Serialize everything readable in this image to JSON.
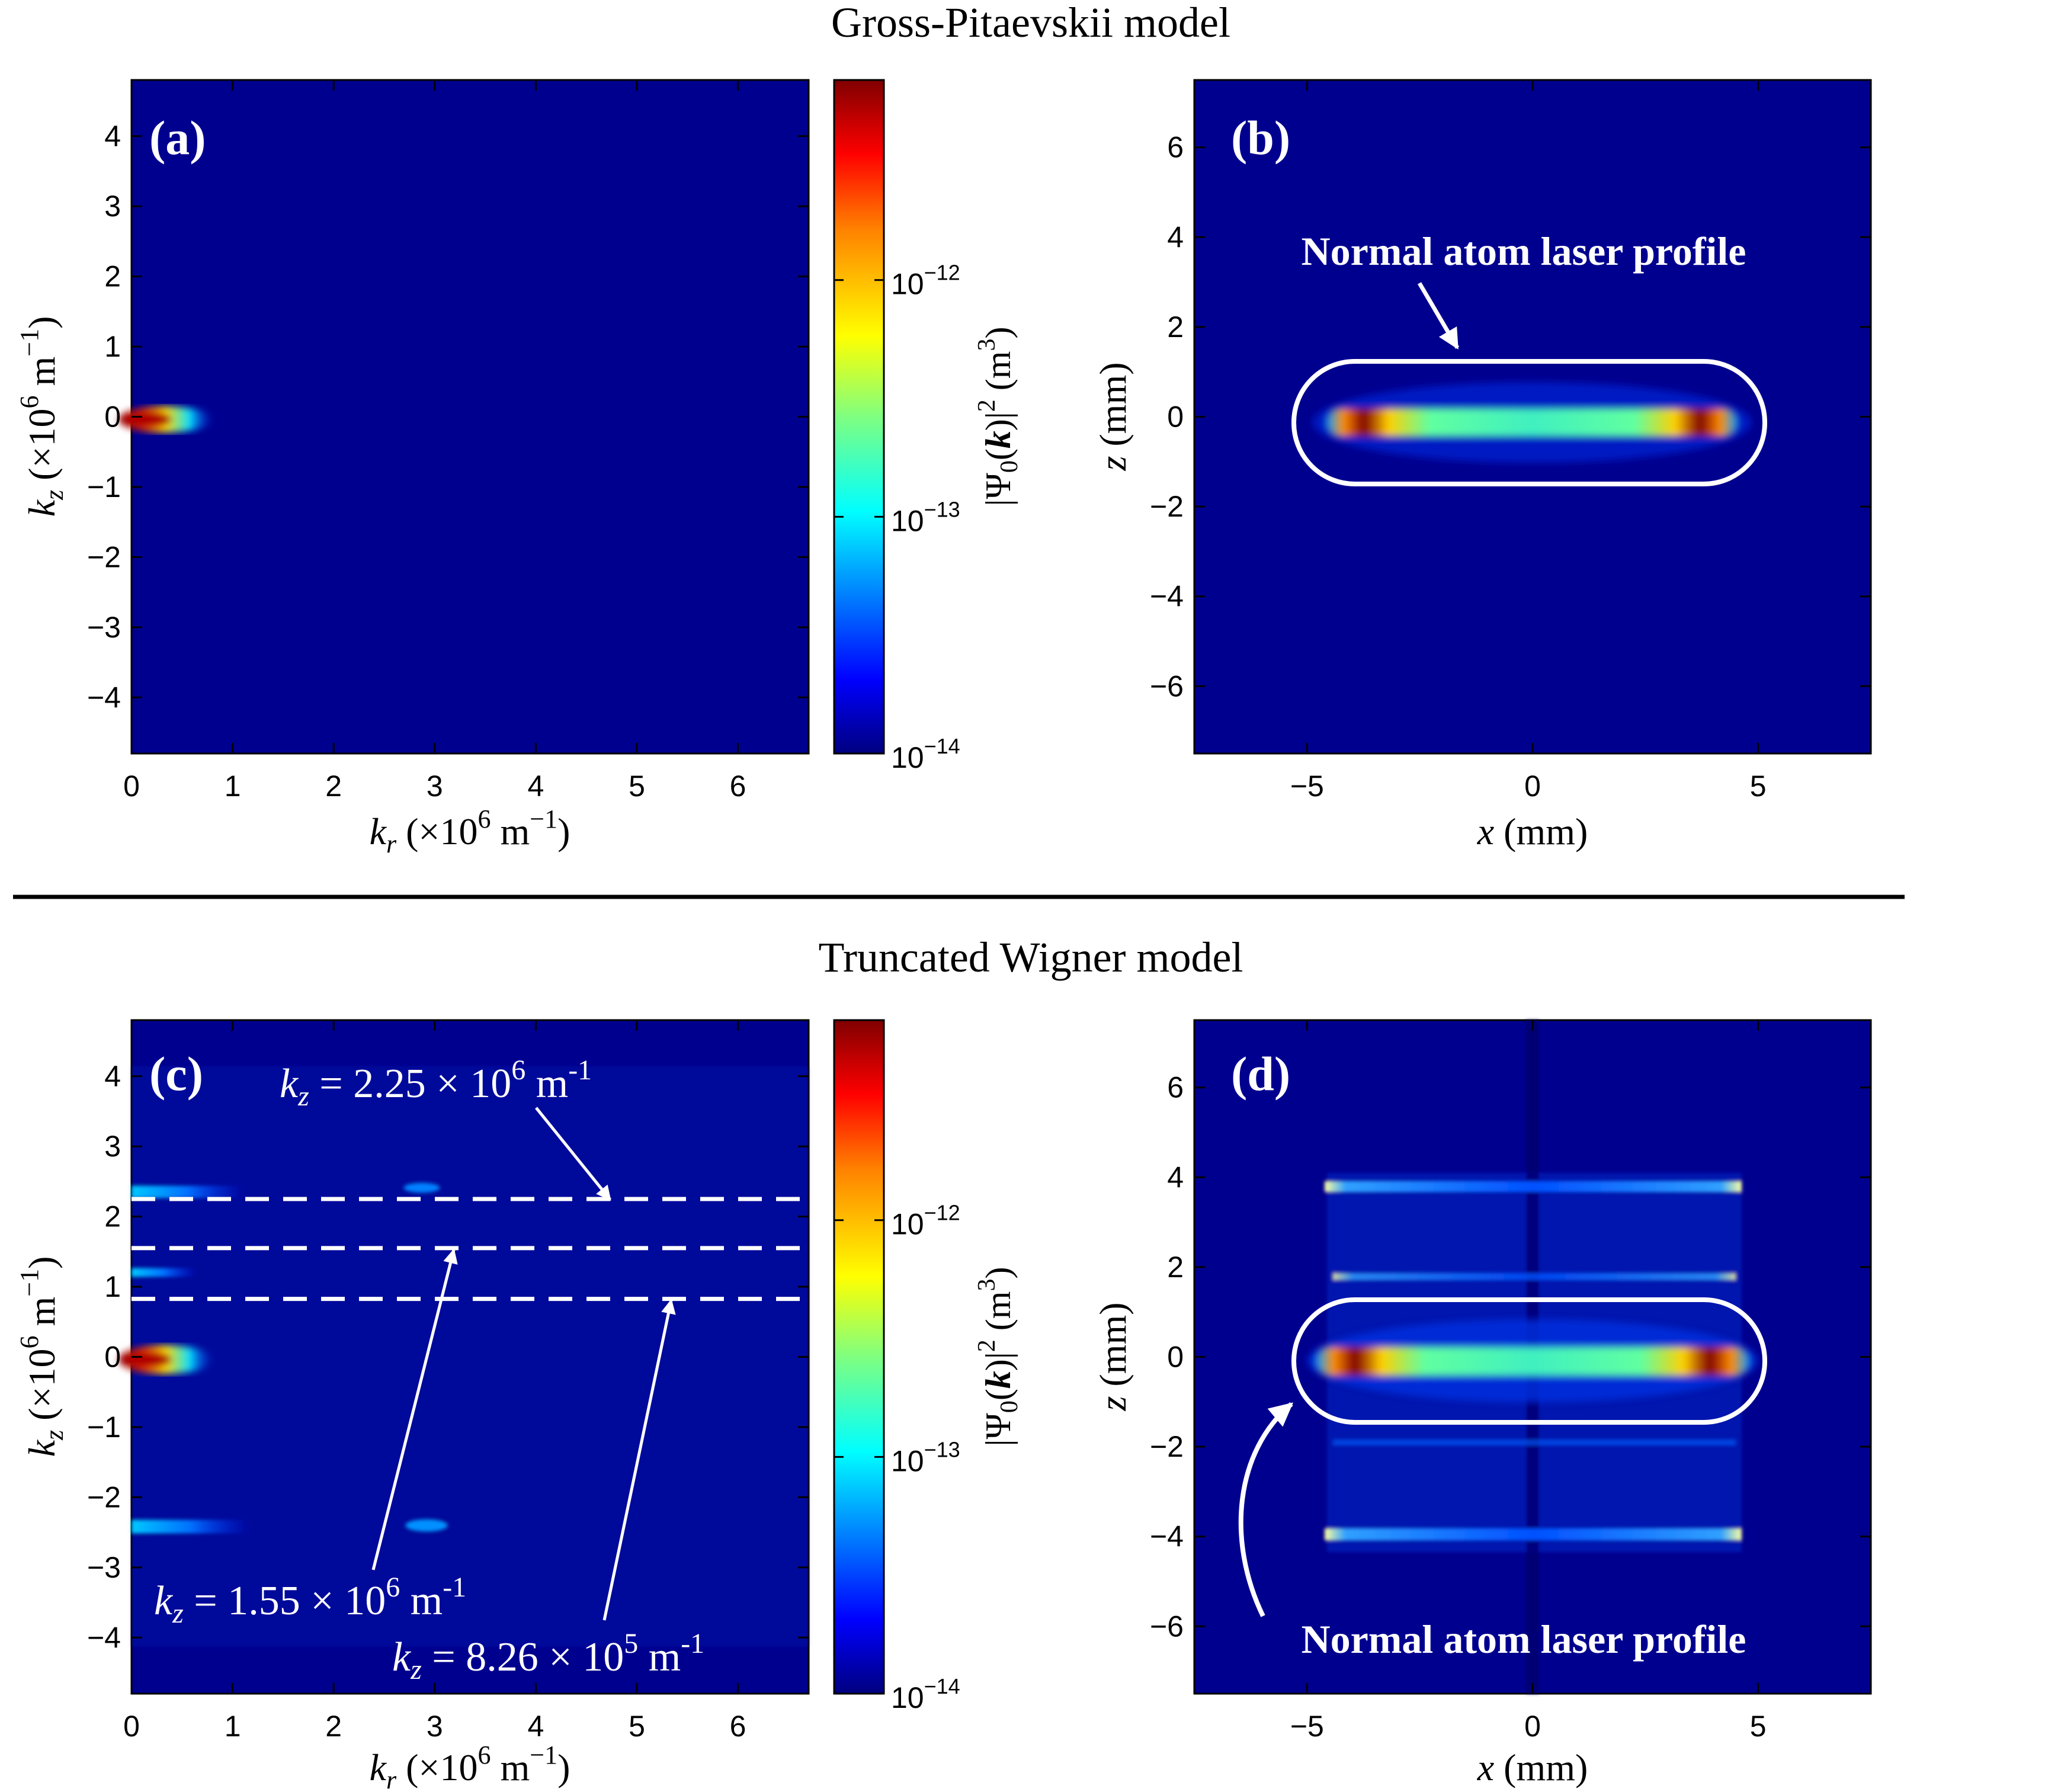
{
  "figure": {
    "titles": {
      "top": "Gross-Pitaevskii model",
      "bottom": "Truncated Wigner model"
    }
  },
  "colors": {
    "background_field": "#00008f",
    "annotation": "#ffffff",
    "axis": "#000000",
    "colormap": [
      "#000080",
      "#0000ff",
      "#0080ff",
      "#00ffff",
      "#80ff80",
      "#ffff00",
      "#ff8000",
      "#ff0000",
      "#800000"
    ]
  },
  "chart_data": [
    {
      "id": "a",
      "panel_label": "(a)",
      "type": "heatmap",
      "xlabel": {
        "var": "k",
        "sub": "r",
        "unit_pre": "(×10",
        "exp": "6",
        "unit_post": " m",
        "unit_exp": "−1",
        "close": ")"
      },
      "ylabel": {
        "var": "k",
        "sub": "z",
        "unit_pre": "(×10",
        "exp": "6",
        "unit_post": " m",
        "unit_exp": "−1",
        "close": ")"
      },
      "xlim": [
        0,
        6.7
      ],
      "ylim": [
        -4.8,
        4.8
      ],
      "xticks": [
        "0",
        "1",
        "2",
        "3",
        "4",
        "5",
        "6"
      ],
      "yticks": [
        "−4",
        "−3",
        "−2",
        "−1",
        "0",
        "1",
        "2",
        "3",
        "4"
      ],
      "features": [
        {
          "kind": "hotspot",
          "kr": [
            0,
            0.9
          ],
          "kz": 0,
          "peak": "dark-red"
        }
      ]
    },
    {
      "id": "b",
      "panel_label": "(b)",
      "type": "heatmap",
      "xlabel": {
        "var": "x",
        "unit": " (mm)"
      },
      "ylabel": {
        "var": "z",
        "unit": " (mm)"
      },
      "xlim": [
        -7.5,
        7.5
      ],
      "ylim": [
        -7.5,
        7.5
      ],
      "xticks": [
        "−5",
        "0",
        "5"
      ],
      "yticks": [
        "−6",
        "−4",
        "−2",
        "0",
        "2",
        "4",
        "6"
      ],
      "features": [
        {
          "kind": "bar",
          "x": [
            -4.5,
            4.5
          ],
          "z": 0,
          "hotspots_x": [
            -3.6,
            3.6
          ]
        }
      ],
      "annotation": {
        "text": "Normal atom laser profile",
        "highlight_box": {
          "x": [
            -5.2,
            5.2
          ],
          "z": [
            -1.4,
            1.4
          ]
        }
      }
    },
    {
      "id": "c",
      "panel_label": "(c)",
      "type": "heatmap",
      "xlabel": {
        "var": "k",
        "sub": "r",
        "unit_pre": "(×10",
        "exp": "6",
        "unit_post": " m",
        "unit_exp": "−1",
        "close": ")"
      },
      "ylabel": {
        "var": "k",
        "sub": "z",
        "unit_pre": "(×10",
        "exp": "6",
        "unit_post": " m",
        "unit_exp": "−1",
        "close": ")"
      },
      "xlim": [
        0,
        6.7
      ],
      "ylim": [
        -4.8,
        4.8
      ],
      "xticks": [
        "0",
        "1",
        "2",
        "3",
        "4",
        "5",
        "6"
      ],
      "yticks": [
        "−4",
        "−3",
        "−2",
        "−1",
        "0",
        "1",
        "2",
        "3",
        "4"
      ],
      "dashed_lines_kz": [
        2.25,
        1.55,
        0.826
      ],
      "annotations": [
        {
          "mantissa": "2.25",
          "exp": "6",
          "kz": 2.25
        },
        {
          "mantissa": "1.55",
          "exp": "6",
          "kz": 1.55
        },
        {
          "mantissa": "8.26",
          "exp": "5",
          "kz": 0.826
        }
      ],
      "features": [
        {
          "kind": "hotspot",
          "kr": [
            0,
            0.9
          ],
          "kz": 0,
          "peak": "dark-red"
        },
        {
          "kind": "streak",
          "kr": [
            0,
            1.0
          ],
          "kz": 2.4
        },
        {
          "kind": "streak",
          "kr": [
            0,
            1.0
          ],
          "kz": -2.45
        },
        {
          "kind": "streak",
          "kr": [
            0,
            0.6
          ],
          "kz": 1.25
        }
      ]
    },
    {
      "id": "d",
      "panel_label": "(d)",
      "type": "heatmap",
      "xlabel": {
        "var": "x",
        "unit": " (mm)"
      },
      "ylabel": {
        "var": "z",
        "unit": " (mm)"
      },
      "xlim": [
        -7.5,
        7.5
      ],
      "ylim": [
        -7.5,
        7.5
      ],
      "xticks": [
        "−5",
        "0",
        "5"
      ],
      "yticks": [
        "−6",
        "−4",
        "−2",
        "0",
        "2",
        "4",
        "6"
      ],
      "features": [
        {
          "kind": "bar",
          "x": [
            -4.6,
            4.6
          ],
          "z": 0,
          "hotspots_x": [
            -4.3,
            4.3
          ]
        },
        {
          "kind": "faint-bar",
          "x": [
            -4.5,
            4.5
          ],
          "z": 3.85
        },
        {
          "kind": "faint-bar",
          "x": [
            -4.5,
            4.5
          ],
          "z": -3.95
        },
        {
          "kind": "faint-bar",
          "x": [
            -4.4,
            4.4
          ],
          "z": 1.8
        }
      ],
      "annotation": {
        "text": "Normal atom laser profile",
        "highlight_box": {
          "x": [
            -5.2,
            5.2
          ],
          "z": [
            -1.4,
            1.4
          ]
        }
      }
    }
  ],
  "colorbars": [
    {
      "id": "cb1",
      "scale": "log",
      "range": [
        1e-14,
        7e-12
      ],
      "ticks": [
        {
          "value": 1e-14,
          "base": "10",
          "exp": "−14"
        },
        {
          "value": 1e-13,
          "base": "10",
          "exp": "−13"
        },
        {
          "value": 1e-12,
          "base": "10",
          "exp": "−12"
        }
      ],
      "label": {
        "pre": "|Ψ",
        "sub": "0",
        "open": "(",
        "k": "k",
        "close": ")|",
        "sq": "2",
        "unit": " (m",
        "unit_exp": "3",
        "end": ")"
      }
    },
    {
      "id": "cb2",
      "scale": "log",
      "range": [
        1e-14,
        7e-12
      ],
      "ticks": [
        {
          "value": 1e-14,
          "base": "10",
          "exp": "−14"
        },
        {
          "value": 1e-13,
          "base": "10",
          "exp": "−13"
        },
        {
          "value": 1e-12,
          "base": "10",
          "exp": "−12"
        }
      ],
      "label": {
        "pre": "|Ψ",
        "sub": "0",
        "open": "(",
        "k": "k",
        "close": ")|",
        "sq": "2",
        "unit": " (m",
        "unit_exp": "3",
        "end": ")"
      }
    }
  ]
}
